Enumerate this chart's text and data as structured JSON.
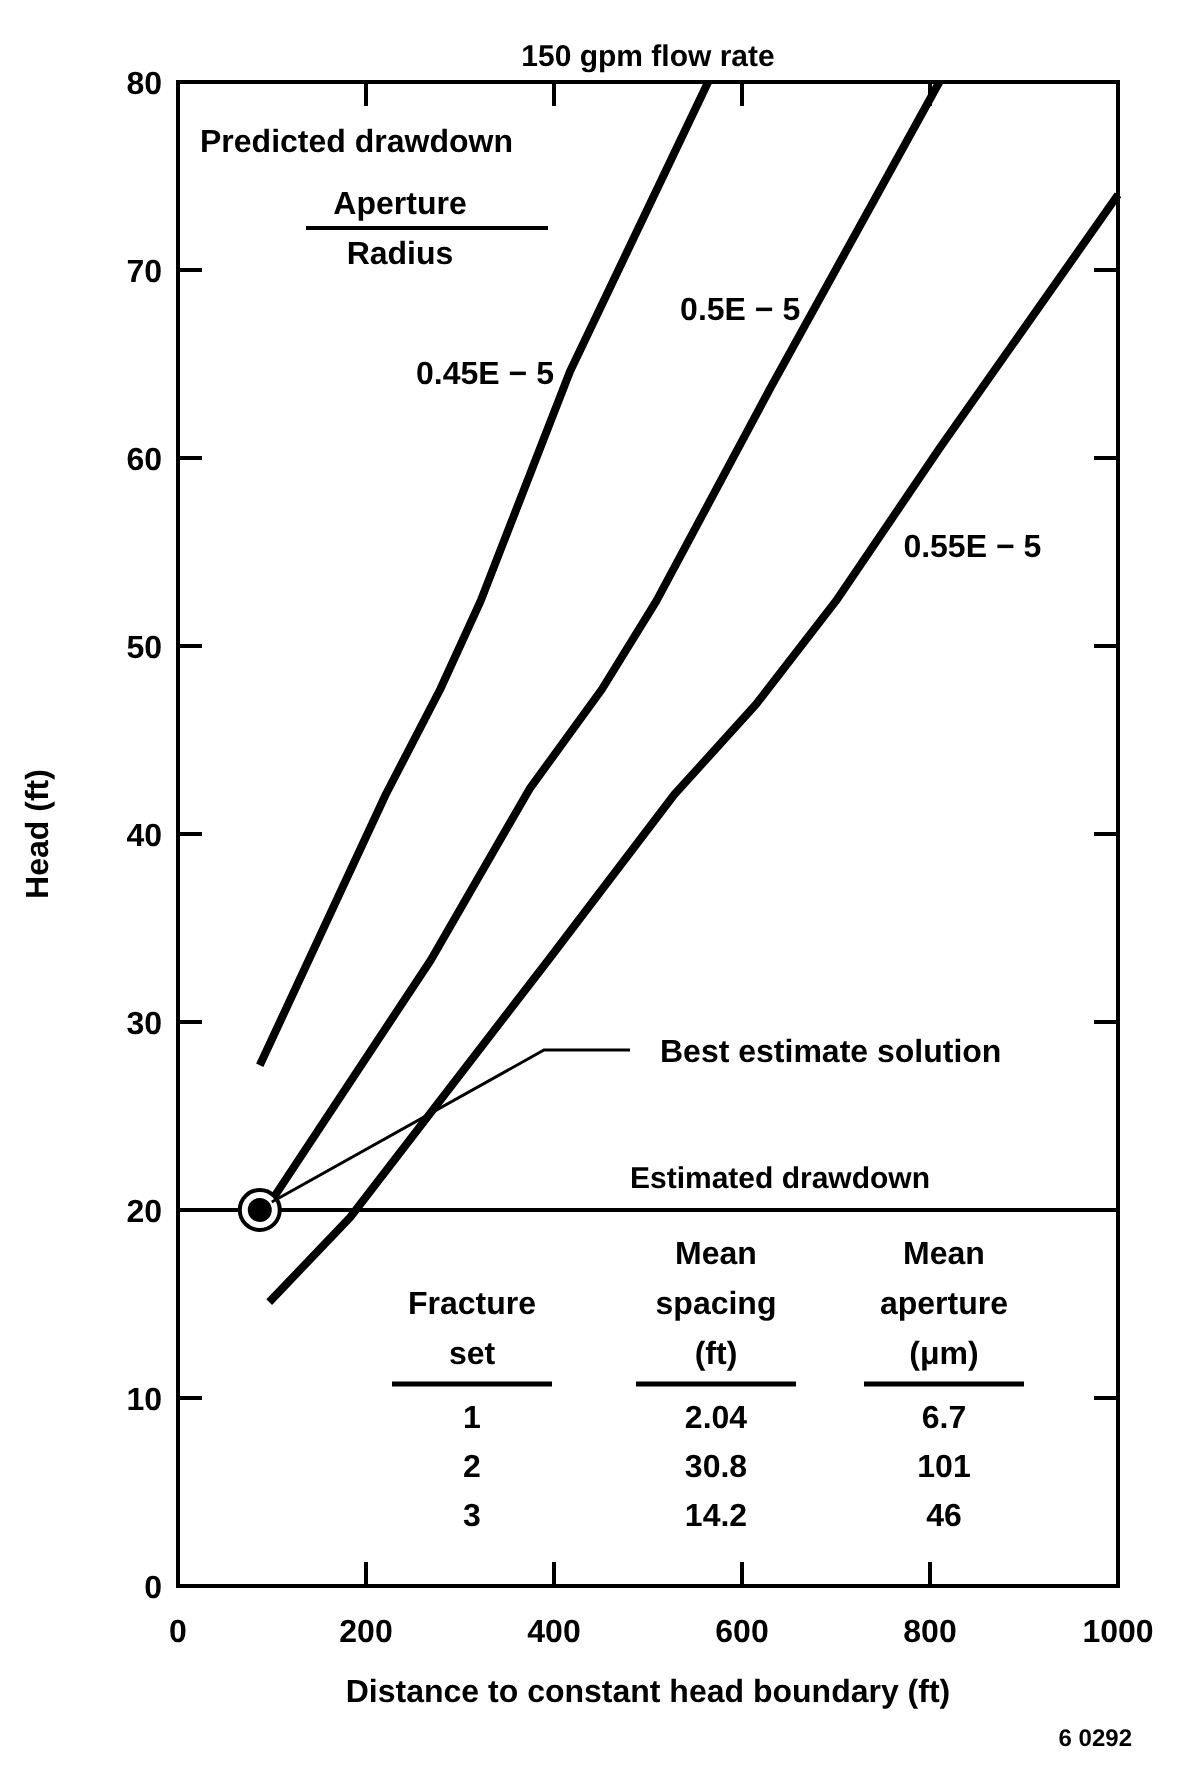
{
  "chart_data": {
    "type": "line",
    "title": "150 gpm flow rate",
    "xlabel": "Distance to constant head boundary (ft)",
    "ylabel": "Head (ft)",
    "legend_title": "Predicted drawdown",
    "xlim": [
      0,
      1000
    ],
    "xticks": [
      0,
      200,
      400,
      600,
      800,
      1000
    ],
    "ylim": [
      0,
      80
    ],
    "yticks": [
      0,
      10,
      20,
      30,
      40,
      50,
      60,
      70,
      80
    ],
    "grid": false,
    "legend": false,
    "marker": "none",
    "line_style": "solid",
    "series": [
      {
        "name": "0.45E − 5",
        "color": "#000000",
        "x": [
          87,
          221,
          279,
          322,
          417,
          564
        ],
        "values": [
          27.7,
          42.1,
          47.7,
          52.4,
          64.6,
          80
        ]
      },
      {
        "name": "0.5E − 5",
        "color": "#000000",
        "x": [
          97,
          269,
          374,
          451,
          509,
          630,
          810
        ],
        "values": [
          20.3,
          33.3,
          42.4,
          47.7,
          52.4,
          63.7,
          80
        ]
      },
      {
        "name": "0.55E − 5",
        "color": "#000000",
        "x": [
          97,
          183,
          394,
          528,
          615,
          700,
          810,
          1000
        ],
        "values": [
          15.1,
          19.6,
          33.3,
          42.1,
          46.9,
          52.4,
          60.5,
          74
        ]
      },
      {
        "type": "scatter",
        "color": "#000000",
        "marker": "circle",
        "x": [
          87
        ],
        "values": [
          20
        ]
      }
    ],
    "ref_lines": [
      {
        "axis": "y",
        "value": 20,
        "label": "Estimated drawdown",
        "color": "#000000",
        "line_style": "solid"
      }
    ],
    "annotations": [
      "Aperture",
      "Radius",
      {
        "text": "Best estimate solution",
        "x": 87,
        "y": 20
      },
      "6 0292",
      "Fracture set",
      "Mean spacing (ft)",
      "Mean aperture (μm)",
      "1",
      "2.04",
      "6.7",
      "2",
      "30.8",
      "101",
      "3",
      "14.2",
      "46"
    ]
  }
}
